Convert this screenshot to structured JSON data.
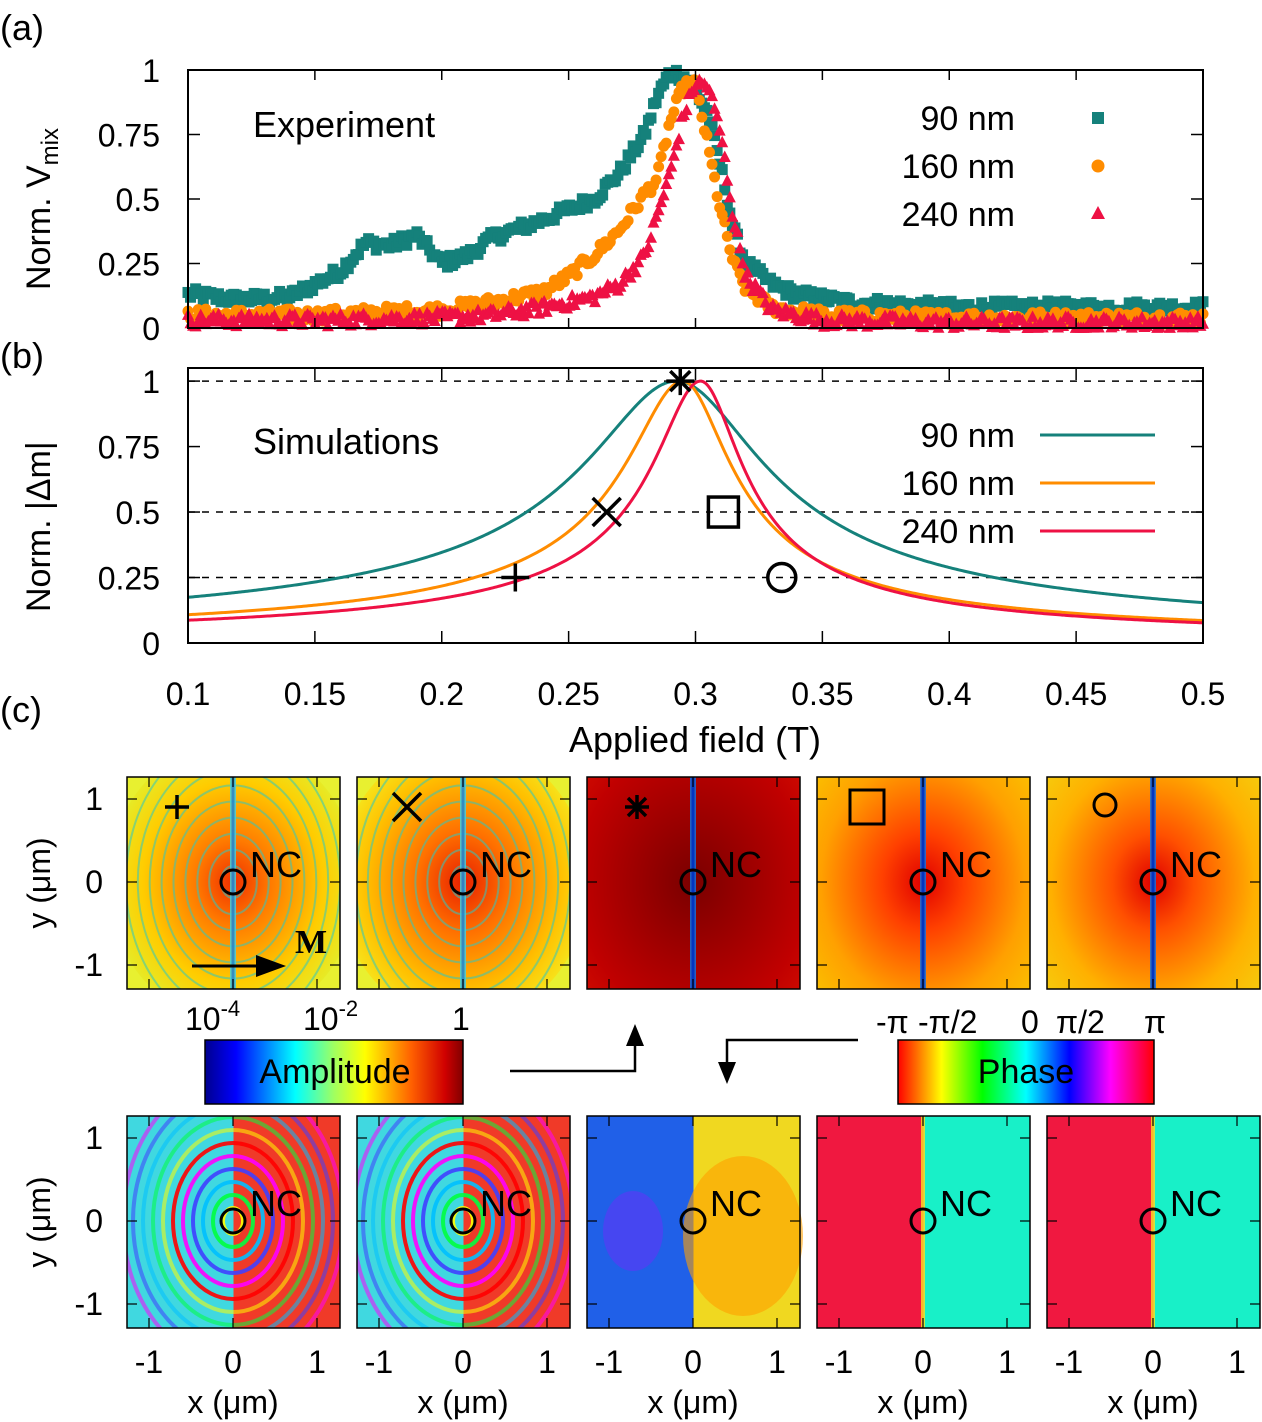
{
  "chart_data": [
    {
      "type": "scatter",
      "panel_label": "(a)",
      "title": "Experiment",
      "ylabel_main": "Norm. V",
      "ylabel_sub": "mix",
      "xlim": [
        0.1,
        0.5
      ],
      "ylim": [
        0,
        1
      ],
      "yticks": [
        "0",
        "0.25",
        "0.5",
        "0.75",
        "1"
      ],
      "series": [
        {
          "name": "90 nm",
          "color": "#15817b",
          "marker": "square",
          "peak_x": 0.29,
          "baseline": 0.08,
          "x": [
            0.1,
            0.12,
            0.14,
            0.16,
            0.17,
            0.18,
            0.19,
            0.2,
            0.21,
            0.22,
            0.24,
            0.26,
            0.27,
            0.28,
            0.285,
            0.29,
            0.295,
            0.3,
            0.305,
            0.31,
            0.315,
            0.32,
            0.33,
            0.34,
            0.36,
            0.4,
            0.45,
            0.5
          ],
          "y": [
            0.13,
            0.11,
            0.12,
            0.22,
            0.33,
            0.32,
            0.36,
            0.25,
            0.28,
            0.35,
            0.42,
            0.5,
            0.6,
            0.75,
            0.9,
            0.99,
            0.98,
            0.92,
            0.83,
            0.62,
            0.38,
            0.25,
            0.17,
            0.13,
            0.1,
            0.08,
            0.08,
            0.08
          ]
        },
        {
          "name": "160 nm",
          "color": "#ff8c00",
          "marker": "circle",
          "peak_x": 0.298,
          "baseline": 0.04,
          "x": [
            0.1,
            0.15,
            0.2,
            0.22,
            0.24,
            0.25,
            0.26,
            0.27,
            0.28,
            0.285,
            0.29,
            0.295,
            0.3,
            0.305,
            0.31,
            0.315,
            0.32,
            0.33,
            0.35,
            0.4,
            0.45,
            0.5
          ],
          "y": [
            0.05,
            0.05,
            0.07,
            0.1,
            0.14,
            0.2,
            0.28,
            0.38,
            0.52,
            0.58,
            0.8,
            0.93,
            0.95,
            0.7,
            0.45,
            0.25,
            0.15,
            0.08,
            0.05,
            0.04,
            0.04,
            0.04
          ]
        },
        {
          "name": "240 nm",
          "color": "#ee1144",
          "marker": "triangle",
          "peak_x": 0.302,
          "baseline": 0.02,
          "x": [
            0.1,
            0.15,
            0.2,
            0.22,
            0.24,
            0.25,
            0.26,
            0.27,
            0.28,
            0.29,
            0.295,
            0.3,
            0.305,
            0.31,
            0.315,
            0.32,
            0.33,
            0.35,
            0.4,
            0.45,
            0.5
          ],
          "y": [
            0.03,
            0.03,
            0.04,
            0.05,
            0.08,
            0.1,
            0.12,
            0.17,
            0.28,
            0.6,
            0.82,
            0.95,
            0.94,
            0.75,
            0.42,
            0.2,
            0.07,
            0.03,
            0.02,
            0.02,
            0.02
          ]
        }
      ]
    },
    {
      "type": "line",
      "panel_label": "(b)",
      "title": "Simulations",
      "ylabel": "Norm. |Δm|",
      "xlabel": "Applied field (T)",
      "xlim": [
        0.1,
        0.5
      ],
      "ylim": [
        0,
        1.05
      ],
      "xticks": [
        "0.1",
        "0.15",
        "0.2",
        "0.25",
        "0.3",
        "0.35",
        "0.4",
        "0.45",
        "0.5"
      ],
      "yticks": [
        "0",
        "0.25",
        "0.5",
        "0.75",
        "1"
      ],
      "guides": [
        0.25,
        0.5,
        1
      ],
      "series": [
        {
          "name": "90 nm",
          "color": "#15817b",
          "x0": 0.2925,
          "wl": 0.058,
          "wr": 0.055
        },
        {
          "name": "160 nm",
          "color": "#ff8c00",
          "x0": 0.295,
          "wl": 0.036,
          "wr": 0.03
        },
        {
          "name": "240 nm",
          "color": "#ee1144",
          "x0": 0.302,
          "wl": 0.03,
          "wr": 0.026
        }
      ],
      "markers": [
        {
          "symbol": "+",
          "x": 0.229,
          "y": 0.25
        },
        {
          "symbol": "×",
          "x": 0.265,
          "y": 0.5
        },
        {
          "symbol": "*",
          "x": 0.294,
          "y": 1.0
        },
        {
          "symbol": "□",
          "x": 0.311,
          "y": 0.5
        },
        {
          "symbol": "○",
          "x": 0.334,
          "y": 0.25
        }
      ]
    },
    {
      "type": "heatmap",
      "panel_label": "(c)",
      "nc_label": "NC",
      "m_label": "M",
      "ylabel": "y (μm)",
      "xlabel": "x (μm)",
      "xticks": [
        "-1",
        "0",
        "1"
      ],
      "yticks": [
        "1",
        "0",
        "-1"
      ],
      "amplitude_colorbar": {
        "label": "Amplitude",
        "ticks": [
          "10-4",
          "10-2",
          "1"
        ]
      },
      "phase_colorbar": {
        "label": "Phase",
        "ticks": [
          "-π",
          "-π/2",
          "0",
          "π/2",
          "π"
        ]
      },
      "panel_symbols": [
        "+",
        "×",
        "*",
        "□",
        "○"
      ]
    }
  ]
}
